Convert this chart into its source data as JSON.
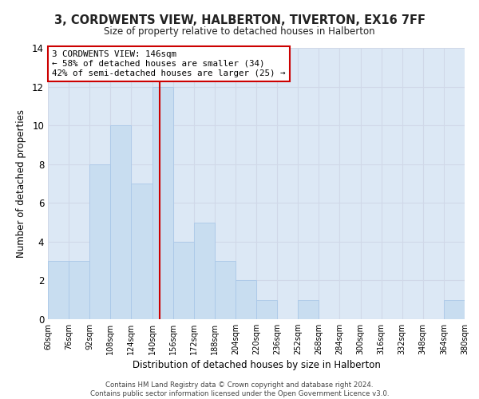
{
  "title": "3, CORDWENTS VIEW, HALBERTON, TIVERTON, EX16 7FF",
  "subtitle": "Size of property relative to detached houses in Halberton",
  "xlabel": "Distribution of detached houses by size in Halberton",
  "ylabel": "Number of detached properties",
  "bin_edges": [
    60,
    76,
    92,
    108,
    124,
    140,
    156,
    172,
    188,
    204,
    220,
    236,
    252,
    268,
    284,
    300,
    316,
    332,
    348,
    364,
    380
  ],
  "bar_heights": [
    3,
    3,
    8,
    10,
    7,
    12,
    4,
    5,
    3,
    2,
    1,
    0,
    1,
    0,
    0,
    0,
    0,
    0,
    0,
    1
  ],
  "bar_color": "#c8ddf0",
  "bar_edge_color": "#aac8e8",
  "grid_color": "#d0d8e8",
  "background_color": "#dce8f5",
  "property_line_x": 146,
  "property_line_color": "#cc0000",
  "ylim": [
    0,
    14
  ],
  "yticks": [
    0,
    2,
    4,
    6,
    8,
    10,
    12,
    14
  ],
  "annotation_title": "3 CORDWENTS VIEW: 146sqm",
  "annotation_line1": "← 58% of detached houses are smaller (34)",
  "annotation_line2": "42% of semi-detached houses are larger (25) →",
  "annotation_box_color": "#ffffff",
  "annotation_box_edge_color": "#cc0000",
  "footer_line1": "Contains HM Land Registry data © Crown copyright and database right 2024.",
  "footer_line2": "Contains public sector information licensed under the Open Government Licence v3.0."
}
